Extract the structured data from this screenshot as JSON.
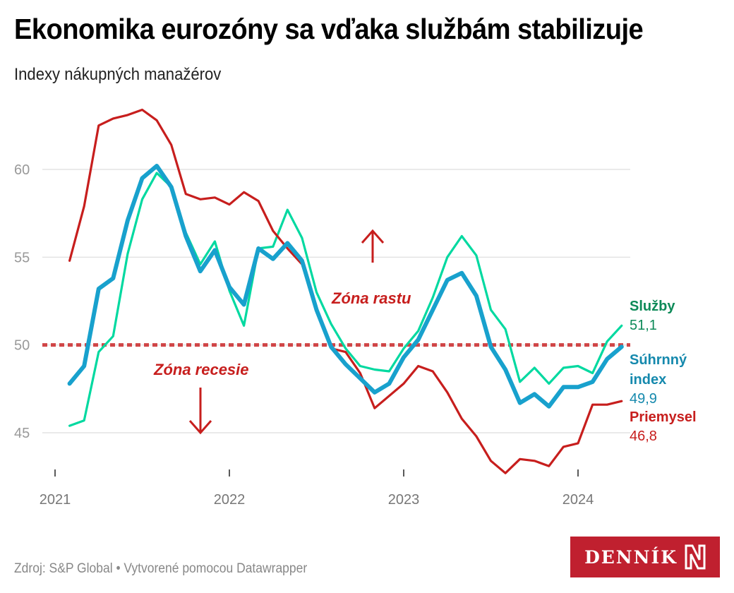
{
  "header": {
    "title": "Ekonomika eurozóny sa vďaka službám stabilizuje",
    "subtitle": "Indexy nákupných manažérov"
  },
  "footer": {
    "source": "Zdroj: S&P Global • Vytvorené pomocou Datawrapper",
    "logo_text": "DENNÍK"
  },
  "colors": {
    "services": "#00d9a0",
    "composite": "#18a1cd",
    "manufacturing": "#c71e1d",
    "threshold": "#d04546",
    "services_label": "#0d8a58",
    "composite_label": "#1589ad",
    "manufacturing_label": "#c71e1d",
    "logo_bg": "#c0202f"
  },
  "chart_data": {
    "type": "line",
    "title": "Ekonomika eurozóny sa vďaka službám stabilizuje",
    "subtitle": "Indexy nákupných manažérov",
    "xlabel": "",
    "ylabel": "",
    "x_start": "2021-01",
    "x_end": "2024-03",
    "x_ticks": [
      "2021",
      "2022",
      "2023",
      "2024"
    ],
    "y_ticks": [
      45,
      50,
      55,
      60
    ],
    "ylim": [
      42.5,
      64
    ],
    "grid": true,
    "threshold": {
      "value": 50,
      "style": "dotted"
    },
    "annotations": [
      {
        "text": "Zóna rastu",
        "arrow": "up"
      },
      {
        "text": "Zóna recesie",
        "arrow": "down"
      }
    ],
    "legend": "right-inline",
    "series": [
      {
        "name": "Služby",
        "key": "services",
        "last_label": "51,1",
        "values": [
          45.4,
          45.7,
          49.6,
          50.5,
          55.2,
          58.3,
          59.8,
          59.0,
          56.4,
          54.6,
          55.9,
          53.1,
          51.1,
          55.5,
          55.6,
          57.7,
          56.1,
          53.0,
          51.2,
          49.8,
          48.8,
          48.6,
          48.5,
          49.8,
          50.8,
          52.7,
          55.0,
          56.2,
          55.1,
          52.0,
          50.9,
          47.9,
          48.7,
          47.8,
          48.7,
          48.8,
          48.4,
          50.2,
          51.1
        ]
      },
      {
        "name": "Súhrnný index",
        "name_lines": [
          "Súhrnný",
          "index"
        ],
        "key": "composite",
        "last_label": "49,9",
        "values": [
          47.8,
          48.8,
          53.2,
          53.8,
          57.1,
          59.5,
          60.2,
          59.0,
          56.2,
          54.2,
          55.4,
          53.3,
          52.3,
          55.5,
          54.9,
          55.8,
          54.8,
          52.0,
          49.9,
          48.9,
          48.1,
          47.3,
          47.8,
          49.3,
          50.3,
          52.0,
          53.7,
          54.1,
          52.8,
          49.9,
          48.6,
          46.7,
          47.2,
          46.5,
          47.6,
          47.6,
          47.9,
          49.2,
          49.9
        ]
      },
      {
        "name": "Priemysel",
        "key": "manufacturing",
        "last_label": "46,8",
        "values": [
          54.8,
          57.9,
          62.5,
          62.9,
          63.1,
          63.4,
          62.8,
          61.4,
          58.6,
          58.3,
          58.4,
          58.0,
          58.7,
          58.2,
          56.5,
          55.5,
          54.6,
          52.1,
          49.8,
          49.6,
          48.4,
          46.4,
          47.1,
          47.8,
          48.8,
          48.5,
          47.3,
          45.8,
          44.8,
          43.4,
          42.7,
          43.5,
          43.4,
          43.1,
          44.2,
          44.4,
          46.6,
          46.6,
          46.8
        ]
      }
    ]
  }
}
